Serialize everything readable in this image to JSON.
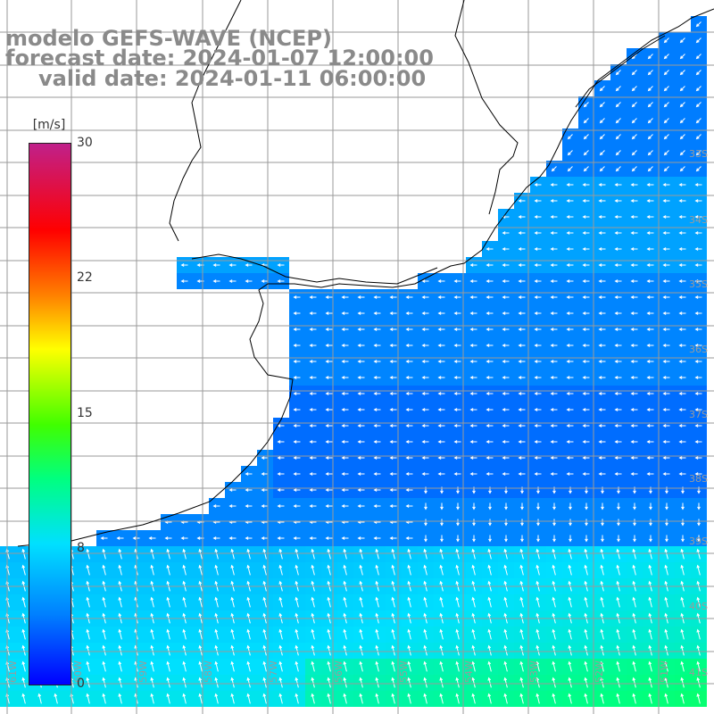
{
  "title": {
    "line1": "modelo GEFS-WAVE (NCEP)",
    "line2": "forecast date: 2024-01-07 12:00:00",
    "line3": "valid date: 2024-01-11 06:00:00"
  },
  "colorbar": {
    "unit": "[m/s]",
    "ticks": [
      "30",
      "22",
      "15",
      "8",
      "0"
    ],
    "tick_values": [
      30,
      22,
      15,
      8,
      0
    ],
    "colors": [
      "#0000ff",
      "#0080ff",
      "#00e0ff",
      "#00ff80",
      "#40ff00",
      "#ffff00",
      "#ff8000",
      "#ff0000",
      "#c0208a"
    ]
  },
  "map": {
    "latitude_labels": [
      "33S",
      "34S",
      "35S",
      "36S",
      "37S",
      "38S",
      "39S",
      "40S",
      "41S"
    ],
    "longitude_labels": [
      "61W",
      "60W",
      "59W",
      "58W",
      "57W",
      "56W",
      "55W",
      "54W",
      "53W",
      "52W",
      "51W"
    ],
    "land_color": "#ffffff",
    "grid_color": "#9a9a9a",
    "coast_color": "#000000",
    "arrow_color": "#ffffff"
  }
}
